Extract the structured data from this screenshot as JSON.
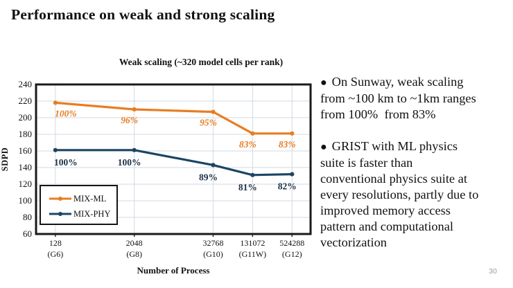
{
  "slide": {
    "title": "Performance on weak and strong scaling",
    "page_number": "30"
  },
  "chart_data": {
    "type": "line",
    "title": "Weak scaling (~320 model cells per rank)",
    "xlabel": "Number of Process",
    "ylabel": "SDPD",
    "ylim": [
      60,
      240
    ],
    "ytick_step": 20,
    "grid": true,
    "x_scale": "log2",
    "x_axis_log2_range": [
      6.02,
      19.94
    ],
    "x_values": [
      128,
      2048,
      32768,
      131072,
      524288
    ],
    "categories": [
      "128",
      "2048",
      "32768",
      "131072",
      "524288"
    ],
    "category_sublabels": [
      "(G6)",
      "(G8)",
      "(G10)",
      "(G11W)",
      "(G12)"
    ],
    "legend_position": "lower-left",
    "frame_color": "#1a1a1a",
    "grid_color": "#d2d9e2",
    "series": [
      {
        "name": "MIX-ML",
        "color": "#E87D22",
        "values": [
          218,
          210,
          207,
          181,
          181
        ],
        "point_labels": [
          "100%",
          "96%",
          "95%",
          "83%",
          "83%"
        ],
        "label_color": "#E87D22",
        "label_italic": true
      },
      {
        "name": "MIX-PHY",
        "color": "#1B4565",
        "values": [
          161,
          161,
          143,
          131,
          132
        ],
        "point_labels": [
          "100%",
          "100%",
          "89%",
          "81%",
          "82%"
        ],
        "label_color": "#1E3147",
        "label_italic": false
      }
    ]
  },
  "notes": {
    "bullet_glyph": "●",
    "bullets": [
      {
        "lines": [
          "On Sunway, weak scaling",
          "from ~100 km to ~1km ranges",
          "from 100%  from 83%"
        ]
      },
      {
        "lines": [
          "GRIST with ML physics",
          "suite is faster than",
          "conventional physics suite at",
          "every resolutions, partly due to",
          "improved memory access",
          "pattern and computational",
          "vectorization"
        ]
      }
    ]
  }
}
